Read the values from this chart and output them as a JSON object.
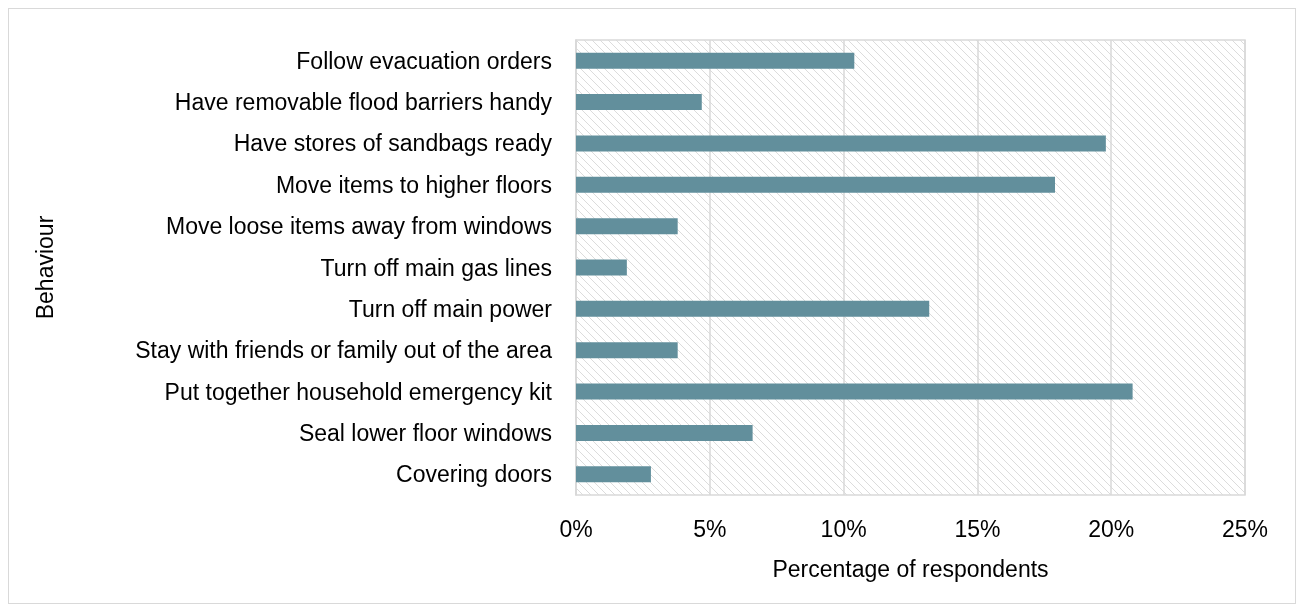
{
  "chart_data": {
    "type": "bar",
    "orientation": "horizontal",
    "xlabel": "Percentage of respondents",
    "ylabel": "Behaviour",
    "categories": [
      "Follow evacuation orders",
      "Have removable flood barriers handy",
      "Have stores of sandbags ready",
      "Move items to higher floors",
      "Move loose items away from windows",
      "Turn off main gas lines",
      "Turn off main power",
      "Stay with friends or family out of the area",
      "Put together household emergency kit",
      "Seal lower floor windows",
      "Covering doors"
    ],
    "values": [
      10.4,
      4.7,
      19.8,
      17.9,
      3.8,
      1.9,
      13.2,
      3.8,
      20.8,
      6.6,
      2.8
    ],
    "color": "#628f9c",
    "xlim": [
      0,
      25
    ],
    "xticks": [
      {
        "value": 0,
        "label": "0%"
      },
      {
        "value": 5,
        "label": "5%"
      },
      {
        "value": 10,
        "label": "10%"
      },
      {
        "value": 15,
        "label": "15%"
      },
      {
        "value": 20,
        "label": "20%"
      },
      {
        "value": 25,
        "label": "25%"
      }
    ],
    "grid": "x"
  }
}
